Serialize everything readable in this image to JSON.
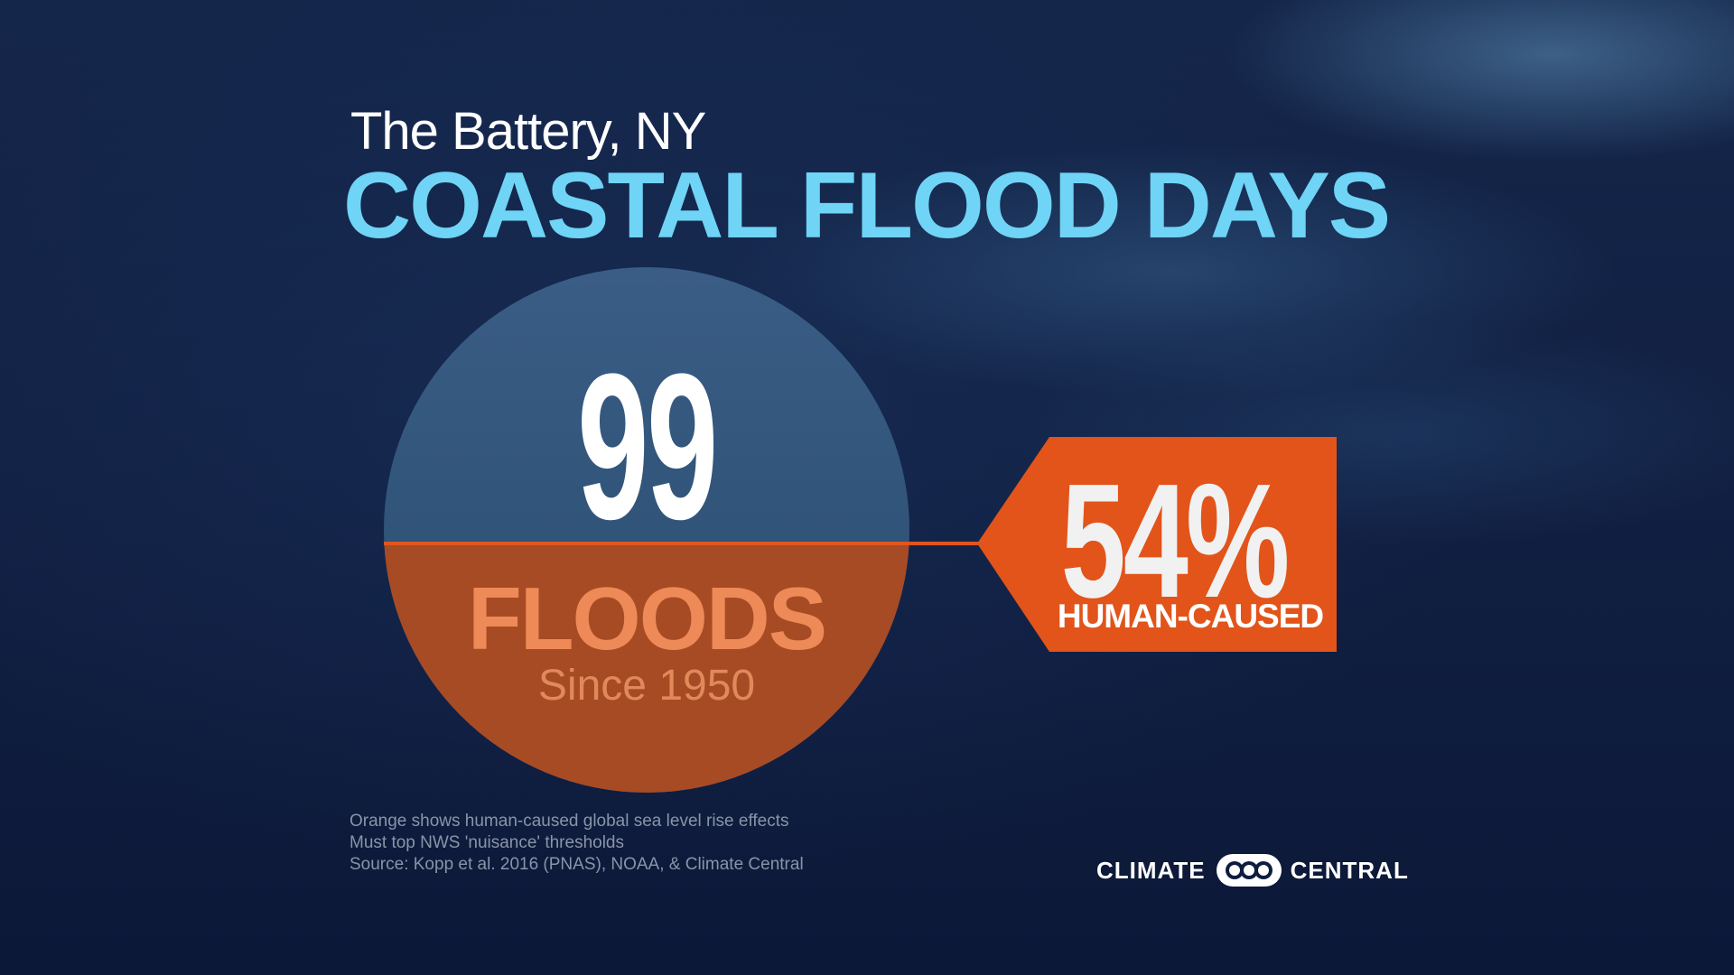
{
  "header": {
    "location": "The Battery, NY",
    "title": "COASTAL FLOOD  DAYS"
  },
  "circle": {
    "count": "99",
    "label": "FLOODS",
    "since": "Since 1950",
    "human_caused_share": 0.54
  },
  "badge": {
    "percent": "54%",
    "label": "HUMAN-CAUSED"
  },
  "notes": {
    "line1": "Orange shows human-caused global sea level rise effects",
    "line2": "Must top NWS 'nuisance' thresholds",
    "line3": "Source: Kopp et al. 2016 (PNAS), NOAA, & Climate Central"
  },
  "logo": {
    "left_text": "CLIMATE",
    "right_text": "CENTRAL",
    "icon": "climate-central-rings-icon"
  },
  "colors": {
    "title": "#6fd4f5",
    "accent_orange": "#e2541a",
    "circle_blue": "#315479",
    "circle_orange": "#a74b25",
    "background": "#0e1d3e"
  }
}
